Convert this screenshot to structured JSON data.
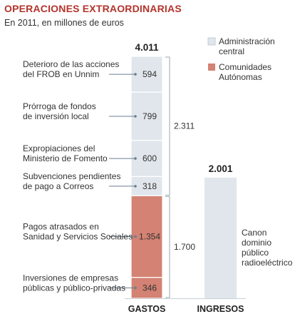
{
  "title": "OPERACIONES EXTRAORDINARIAS",
  "subtitle": "En 2011, en millones de euros",
  "colors": {
    "title": "#b3332b",
    "administracion_central": "#e1e6ec",
    "comunidades_autonomas": "#d38273",
    "ingresos": "#e1e6ec"
  },
  "legend": [
    {
      "name": "Administración central",
      "lines": [
        "Administración",
        "central"
      ],
      "color": "#e1e6ec"
    },
    {
      "name": "Comunidades Autónomas",
      "lines": [
        "Comunidades",
        "Autónomas"
      ],
      "color": "#d38273"
    }
  ],
  "chart_data": {
    "type": "bar",
    "stacked": true,
    "categories": [
      "GASTOS",
      "INGRESOS"
    ],
    "totals": {
      "GASTOS": "4.011",
      "INGRESOS": "2.001"
    },
    "series": [
      {
        "category": "GASTOS",
        "group": "Administración central",
        "group_total_label": "2.311",
        "segments": [
          {
            "label_lines": [
              "Deterioro de las acciones",
              "del FROB en Unnim"
            ],
            "value": 594,
            "value_label": "594"
          },
          {
            "label_lines": [
              "Prórroga de fondos",
              "de inversión local"
            ],
            "value": 799,
            "value_label": "799"
          },
          {
            "label_lines": [
              "Expropiaciones del",
              "Ministerio de Fomento"
            ],
            "value": 600,
            "value_label": "600"
          },
          {
            "label_lines": [
              "Subvenciones pendientes",
              "de pago a Correos"
            ],
            "value": 318,
            "value_label": "318"
          }
        ]
      },
      {
        "category": "GASTOS",
        "group": "Comunidades Autónomas",
        "group_total_label": "1.700",
        "segments": [
          {
            "label_lines": [
              "Pagos atrasados en",
              "Sanidad y Servicios Sociales"
            ],
            "value": 1354,
            "value_label": "1.354"
          },
          {
            "label_lines": [
              "Inversiones de empresas",
              "públicas y público-privadas"
            ],
            "value": 346,
            "value_label": "346"
          }
        ]
      },
      {
        "category": "INGRESOS",
        "group": "Administración central",
        "segments": [
          {
            "label_lines": [
              "Canon",
              "dominio",
              "público",
              "radioeléctrico"
            ],
            "value": 2001,
            "value_label": ""
          }
        ]
      }
    ]
  }
}
